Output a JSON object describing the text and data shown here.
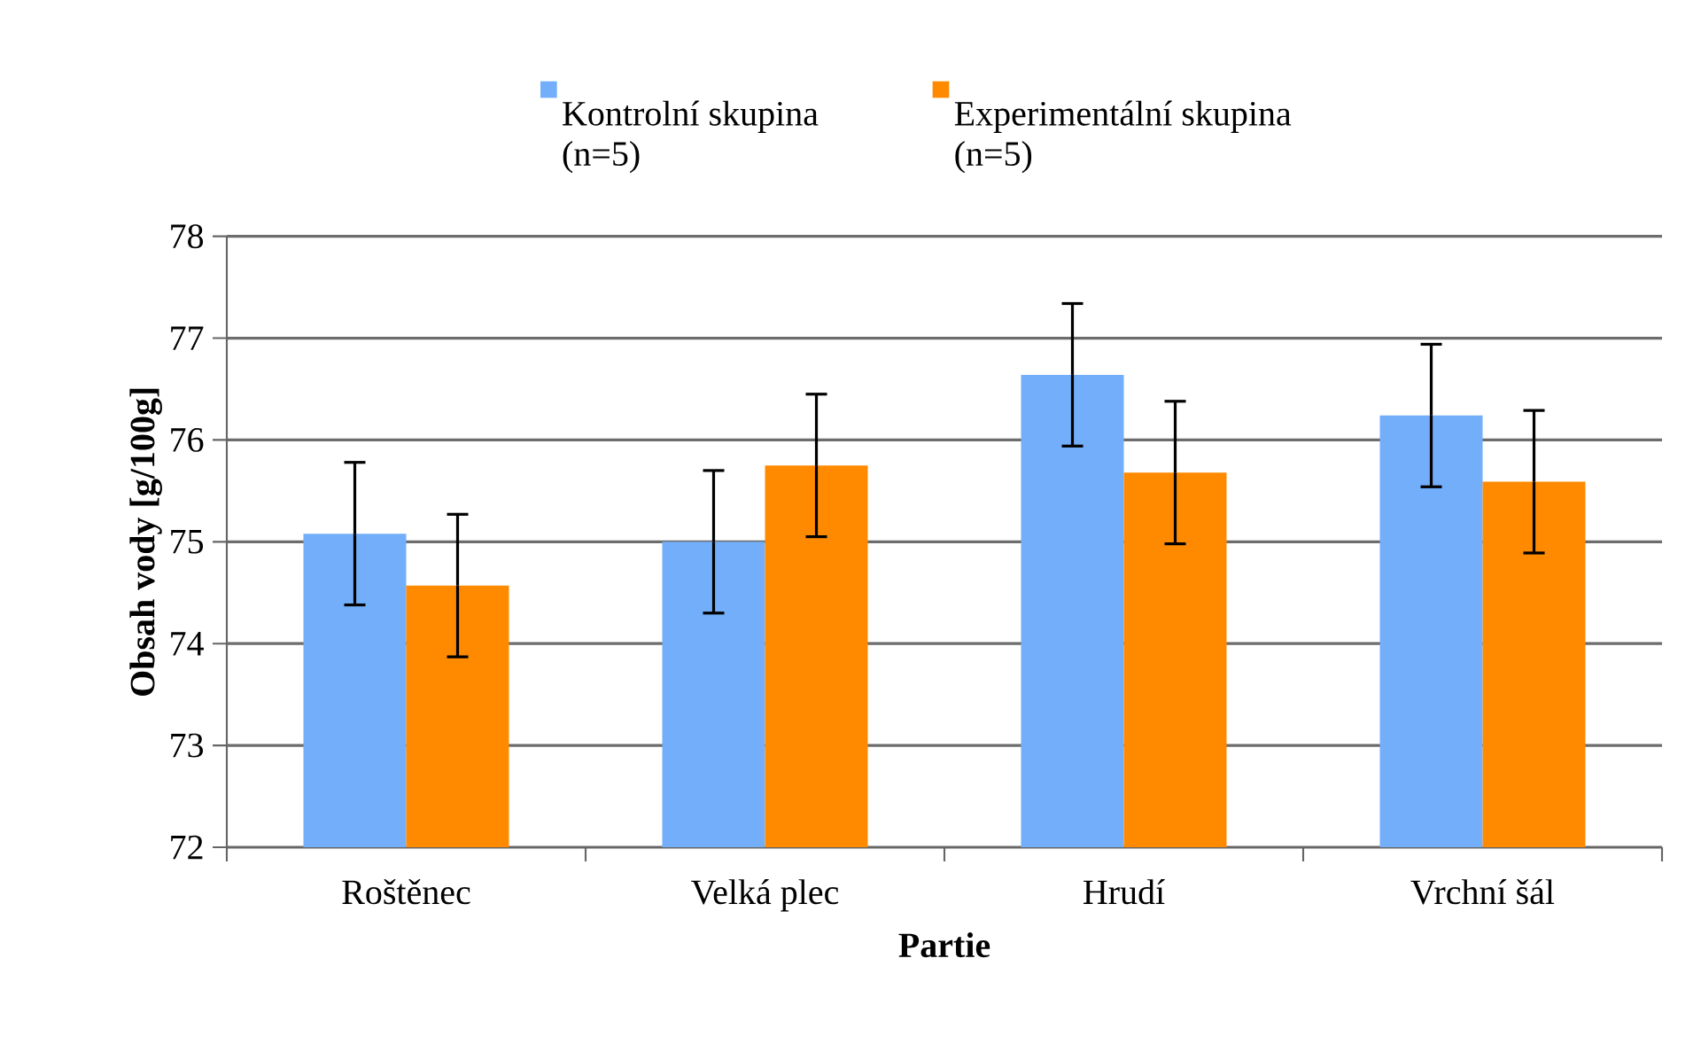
{
  "chart_data": {
    "type": "bar",
    "xlabel": "Partie",
    "ylabel": "Obsah vody [g/100g]",
    "categories": [
      "Roštěnec",
      "Velká plec",
      "Hrudí",
      "Vrchní šál"
    ],
    "series": [
      {
        "name": "Kontrolní skupina (n=5)",
        "color": "#72aef9",
        "values": [
          75.08,
          75.0,
          76.64,
          76.24
        ],
        "errors": [
          0.7,
          0.7,
          0.7,
          0.7
        ]
      },
      {
        "name": "Experimentální skupina (n=5)",
        "color": "#ff8a00",
        "values": [
          74.57,
          75.75,
          75.68,
          75.59
        ],
        "errors": [
          0.7,
          0.7,
          0.7,
          0.7
        ]
      }
    ],
    "ylim": [
      72,
      78
    ],
    "yticks": [
      72,
      73,
      74,
      75,
      76,
      77,
      78
    ],
    "grid": "y",
    "legend": "top"
  }
}
